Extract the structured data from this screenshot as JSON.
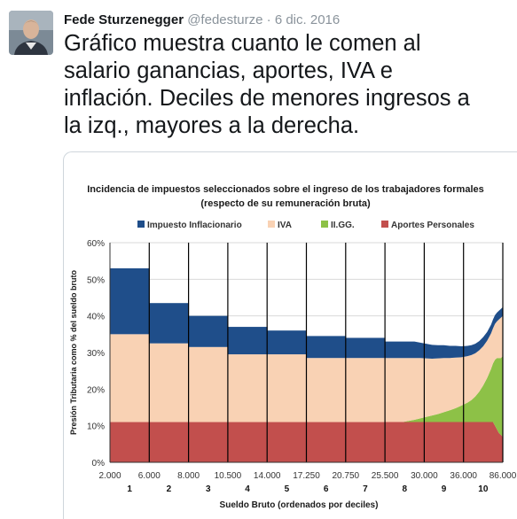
{
  "tweet": {
    "author_name": "Fede Sturzenegger",
    "author_handle": "@fedesturze",
    "separator": "·",
    "date": "6 dic. 2016",
    "text_lines": [
      "Gráfico muestra cuanto le comen al",
      "salario ganancias, aportes, IVA e",
      "inflación. Deciles de menores ingresos a",
      "la izq., mayores a la derecha."
    ]
  },
  "colors": {
    "inflacionario": "#1f4e8a",
    "iva": "#f9d2b4",
    "iigg": "#8dc147",
    "aportes": "#c24f4d"
  },
  "chart_data": {
    "type": "area",
    "title": "Incidencia de impuestos seleccionados sobre el ingreso de los trabajadores formales",
    "subtitle": "(respecto de su remuneración bruta)",
    "xlabel": "Sueldo Bruto (ordenados por deciles)",
    "ylabel": "Presión Tributaria como % del sueldo bruto",
    "ylim": [
      0,
      60
    ],
    "yticks": [
      "0%",
      "10%",
      "20%",
      "30%",
      "40%",
      "50%",
      "60%"
    ],
    "x_tick_labels": [
      "2.000",
      "6.000",
      "8.000",
      "10.500",
      "14.000",
      "17.250",
      "20.750",
      "25.500",
      "30.000",
      "36.000",
      "86.000"
    ],
    "decile_labels": [
      "1",
      "2",
      "3",
      "4",
      "5",
      "6",
      "7",
      "8",
      "9",
      "10"
    ],
    "legend": {
      "placement": "top",
      "entries": [
        "Impuesto Inflacionario",
        "IVA",
        "II.GG.",
        "Aportes Personales"
      ]
    },
    "stack_order": [
      "Aportes Personales",
      "II.GG.",
      "IVA",
      "Impuesto Inflacionario"
    ],
    "deciles": [
      {
        "decile": "1",
        "aportes": 11,
        "iigg": 0,
        "iva": 24,
        "inflacionario": 18
      },
      {
        "decile": "2",
        "aportes": 11,
        "iigg": 0,
        "iva": 21.5,
        "inflacionario": 11
      },
      {
        "decile": "3",
        "aportes": 11,
        "iigg": 0,
        "iva": 20.5,
        "inflacionario": 8.5
      },
      {
        "decile": "4",
        "aportes": 11,
        "iigg": 0,
        "iva": 18.5,
        "inflacionario": 7.5
      },
      {
        "decile": "5",
        "aportes": 11,
        "iigg": 0,
        "iva": 18.5,
        "inflacionario": 6.5
      },
      {
        "decile": "6",
        "aportes": 11,
        "iigg": 0,
        "iva": 17.5,
        "inflacionario": 6
      },
      {
        "decile": "7",
        "aportes": 11,
        "iigg": 0,
        "iva": 17.5,
        "inflacionario": 5.5
      }
    ],
    "tail": {
      "x": [
        0,
        0.15,
        0.3,
        0.45,
        0.6,
        0.75,
        0.9,
        1.05,
        1.2,
        1.35,
        1.5,
        1.65,
        1.8,
        1.95,
        2.1,
        2.2,
        2.3,
        2.4,
        2.5,
        2.6,
        2.7,
        2.75,
        2.8,
        2.85,
        2.9,
        2.95,
        3.0
      ],
      "aportes": [
        11,
        11,
        11,
        11,
        11,
        11,
        11,
        11,
        11,
        11,
        11,
        11,
        11,
        11,
        11,
        11,
        11,
        11,
        11,
        11,
        11,
        11,
        10,
        9,
        8,
        7.5,
        7
      ],
      "iigg": [
        0,
        0,
        0,
        0,
        0.3,
        0.6,
        1,
        1.4,
        1.8,
        2.2,
        2.7,
        3.2,
        3.8,
        4.5,
        5.3,
        6,
        7,
        8.3,
        10,
        12,
        14.5,
        16,
        18,
        19.5,
        20.5,
        21,
        22
      ],
      "iva": [
        17.5,
        17.5,
        17.5,
        17.5,
        17.2,
        16.9,
        16.5,
        16,
        15.5,
        15.2,
        14.8,
        14.3,
        13.8,
        13.2,
        12.7,
        12.3,
        11.8,
        11.3,
        10.7,
        10.2,
        9.7,
        9.6,
        9.8,
        10,
        10.5,
        11,
        11
      ],
      "inflacionario": [
        4.5,
        4.5,
        4.5,
        4.5,
        4.5,
        4.5,
        4.2,
        4,
        3.8,
        3.6,
        3.5,
        3.3,
        3.2,
        3,
        2.8,
        2.7,
        2.6,
        2.5,
        2.5,
        2.4,
        2.4,
        2.4,
        2.4,
        2.4,
        2.4,
        2.4,
        2.4
      ]
    }
  }
}
